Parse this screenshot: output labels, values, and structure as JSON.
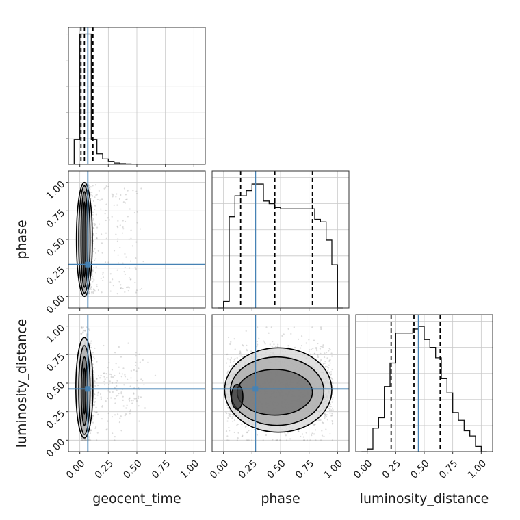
{
  "chart_data": {
    "type": "corner",
    "parameters": [
      "geocent_time",
      "phase",
      "luminosity_distance"
    ],
    "truths": [
      0.07,
      0.28,
      0.45
    ],
    "tick_values": [
      0.0,
      0.25,
      0.5,
      0.75,
      1.0
    ],
    "tick_labels": [
      "0.00",
      "0.25",
      "0.50",
      "0.75",
      "1.00"
    ],
    "xlim": [
      -0.1,
      1.1
    ],
    "grid": true,
    "colors": {
      "truth": "#4682b4",
      "hist": "#111111",
      "points": "#9a9a9a",
      "contour": "#000000"
    },
    "diagonal": [
      {
        "parameter": "geocent_time",
        "bin_edges": [
          -0.05,
          0.0,
          0.05,
          0.1,
          0.15,
          0.2,
          0.25,
          0.3,
          0.35,
          0.4,
          0.45,
          0.5
        ],
        "counts": [
          0.19,
          1.0,
          1.0,
          0.19,
          0.08,
          0.04,
          0.02,
          0.01,
          0.005,
          0.003,
          0.002
        ],
        "quantiles": [
          0.01,
          0.04,
          0.115
        ],
        "ymax": 1.05
      },
      {
        "parameter": "phase",
        "bin_edges": [
          -0.05,
          0.0,
          0.05,
          0.1,
          0.15,
          0.2,
          0.25,
          0.3,
          0.35,
          0.4,
          0.45,
          0.5,
          0.55,
          0.6,
          0.65,
          0.7,
          0.75,
          0.8,
          0.85,
          0.9,
          0.95,
          1.0,
          1.05
        ],
        "counts": [
          0.0,
          0.05,
          0.7,
          0.86,
          0.86,
          0.9,
          0.95,
          0.95,
          0.82,
          0.8,
          0.77,
          0.76,
          0.76,
          0.76,
          0.76,
          0.76,
          0.76,
          0.68,
          0.66,
          0.52,
          0.33,
          0.0
        ],
        "quantiles": [
          0.15,
          0.45,
          0.78
        ],
        "ymax": 1.05
      },
      {
        "parameter": "luminosity_distance",
        "bin_edges": [
          -0.05,
          0.0,
          0.05,
          0.1,
          0.15,
          0.2,
          0.25,
          0.3,
          0.35,
          0.4,
          0.45,
          0.5,
          0.55,
          0.6,
          0.65,
          0.7,
          0.75,
          0.8,
          0.85,
          0.9,
          0.95,
          1.0,
          1.05
        ],
        "counts": [
          0.0,
          0.02,
          0.18,
          0.26,
          0.5,
          0.68,
          0.91,
          0.91,
          0.91,
          0.94,
          0.96,
          0.86,
          0.8,
          0.72,
          0.56,
          0.45,
          0.3,
          0.24,
          0.16,
          0.12,
          0.04,
          0.0
        ],
        "quantiles": [
          0.21,
          0.41,
          0.64
        ],
        "ymax": 1.05
      }
    ],
    "panels_2d": [
      {
        "x": "geocent_time",
        "y": "phase",
        "contours": [
          {
            "cx": 0.04,
            "cy": 0.5,
            "rx": 0.07,
            "ry": 0.5
          },
          {
            "cx": 0.04,
            "cy": 0.5,
            "rx": 0.05,
            "ry": 0.47
          },
          {
            "cx": 0.04,
            "cy": 0.5,
            "rx": 0.03,
            "ry": 0.42
          },
          {
            "cx": 0.04,
            "cy": 0.5,
            "rx": 0.013,
            "ry": 0.33
          }
        ]
      },
      {
        "x": "geocent_time",
        "y": "luminosity_distance",
        "contours": [
          {
            "cx": 0.04,
            "cy": 0.46,
            "rx": 0.075,
            "ry": 0.44
          },
          {
            "cx": 0.04,
            "cy": 0.44,
            "rx": 0.05,
            "ry": 0.39
          },
          {
            "cx": 0.04,
            "cy": 0.43,
            "rx": 0.028,
            "ry": 0.3
          },
          {
            "cx": 0.04,
            "cy": 0.43,
            "rx": 0.012,
            "ry": 0.2
          }
        ]
      },
      {
        "x": "phase",
        "y": "luminosity_distance",
        "contours": [
          {
            "cx": 0.48,
            "cy": 0.44,
            "rx": 0.47,
            "ry": 0.37
          },
          {
            "cx": 0.47,
            "cy": 0.43,
            "rx": 0.41,
            "ry": 0.3
          },
          {
            "cx": 0.45,
            "cy": 0.42,
            "rx": 0.33,
            "ry": 0.2
          },
          {
            "cx": 0.12,
            "cy": 0.38,
            "rx": 0.05,
            "ry": 0.11
          }
        ]
      }
    ]
  }
}
